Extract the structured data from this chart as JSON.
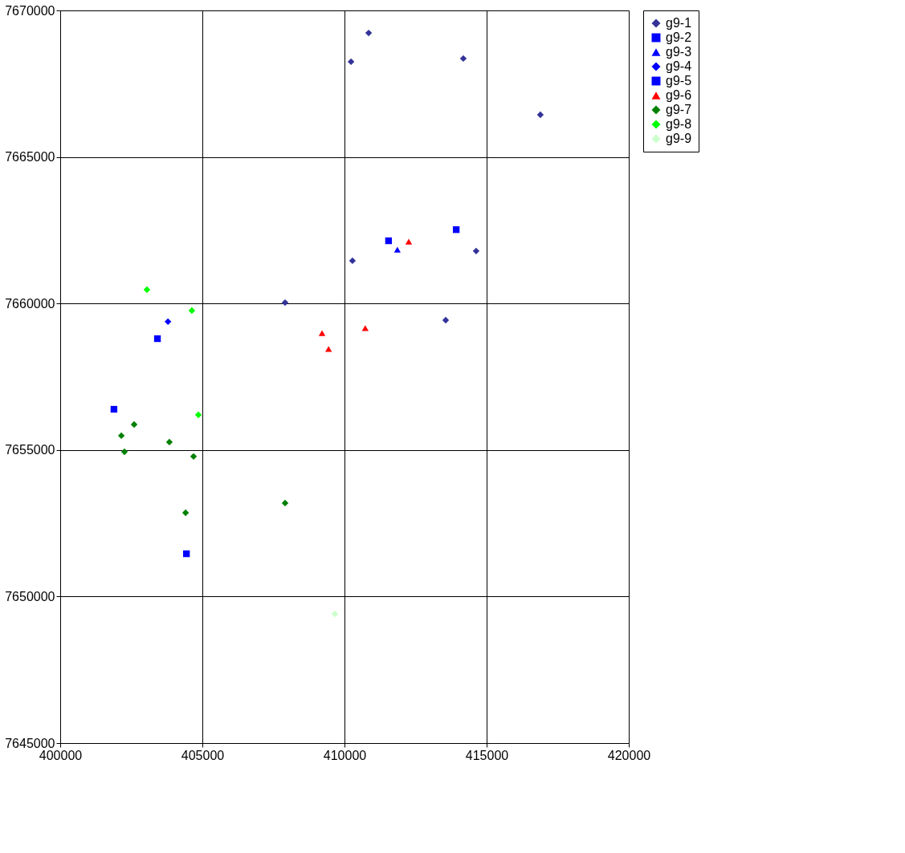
{
  "chart_data": {
    "type": "scatter",
    "xlim": [
      400000,
      420000
    ],
    "ylim": [
      7645000,
      7670000
    ],
    "xticks": [
      400000,
      405000,
      410000,
      415000,
      420000
    ],
    "yticks": [
      7645000,
      7650000,
      7655000,
      7660000,
      7665000,
      7670000
    ],
    "grid": true,
    "legend": "right",
    "series": [
      {
        "name": "g9-1",
        "color": "#333399",
        "marker": "diamond",
        "x": [
          410850,
          410230,
          414180,
          416890,
          410280,
          414630,
          407910,
          413560
        ],
        "values": [
          7669230,
          7668250,
          7668360,
          7666440,
          7661460,
          7661790,
          7660030,
          7659430
        ]
      },
      {
        "name": "g9-2",
        "color": "#0000ff",
        "marker": "square",
        "x": [
          413930,
          403420,
          401890,
          404440
        ],
        "values": [
          7662520,
          7658800,
          7656390,
          7651460
        ]
      },
      {
        "name": "g9-3",
        "color": "#0000ff",
        "marker": "triangle",
        "x": [
          411860
        ],
        "values": [
          7661840
        ]
      },
      {
        "name": "g9-4",
        "color": "#0000ff",
        "marker": "diamond",
        "x": [
          403790
        ],
        "values": [
          7659380
        ]
      },
      {
        "name": "g9-5",
        "color": "#0000ff",
        "marker": "square",
        "x": [
          411550
        ],
        "values": [
          7662140
        ]
      },
      {
        "name": "g9-6",
        "color": "#ff0000",
        "marker": "triangle",
        "x": [
          412260,
          409210,
          409440,
          410730
        ],
        "values": [
          7662110,
          7658990,
          7658450,
          7659160
        ]
      },
      {
        "name": "g9-7",
        "color": "#008000",
        "marker": "diamond",
        "x": [
          402600,
          402150,
          402260,
          403840,
          404690,
          404410,
          407910
        ],
        "values": [
          7655870,
          7655490,
          7654940,
          7655270,
          7654780,
          7652860,
          7653190
        ]
      },
      {
        "name": "g9-8",
        "color": "#00ff00",
        "marker": "diamond",
        "x": [
          403050,
          404630,
          404860
        ],
        "values": [
          7660470,
          7659760,
          7656200
        ]
      },
      {
        "name": "g9-9",
        "color": "#ccffcc",
        "marker": "diamond",
        "x": [
          409660
        ],
        "values": [
          7649410
        ]
      }
    ]
  }
}
